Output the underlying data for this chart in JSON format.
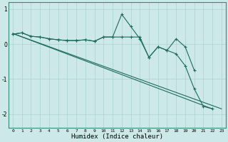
{
  "xlabel": "Humidex (Indice chaleur)",
  "ylabel": "",
  "bg_color": "#cce8e8",
  "line_color": "#1e6b5e",
  "grid_color": "#aad0d0",
  "xlim": [
    -0.5,
    23.5
  ],
  "ylim": [
    -2.4,
    1.2
  ],
  "yticks": [
    -2,
    -1,
    0,
    1
  ],
  "xticks": [
    0,
    1,
    2,
    3,
    4,
    5,
    6,
    7,
    8,
    9,
    10,
    11,
    12,
    13,
    14,
    15,
    16,
    17,
    18,
    19,
    20,
    21,
    22,
    23
  ],
  "series": [
    {
      "x": [
        0,
        23
      ],
      "y": [
        0.3,
        -1.85
      ],
      "has_markers": false
    },
    {
      "x": [
        0,
        22
      ],
      "y": [
        0.3,
        -1.85
      ],
      "has_markers": false
    },
    {
      "x": [
        0,
        1,
        2,
        3,
        4,
        5,
        6,
        7,
        8,
        9,
        10,
        11,
        12,
        13,
        14,
        15,
        16,
        17,
        18,
        19,
        20,
        21,
        22
      ],
      "y": [
        0.28,
        0.32,
        0.22,
        0.2,
        0.15,
        0.12,
        0.1,
        0.1,
        0.12,
        0.08,
        0.2,
        0.2,
        0.85,
        0.5,
        0.15,
        -0.38,
        -0.08,
        -0.18,
        -0.28,
        -0.62,
        -1.28,
        -1.78,
        -1.85
      ],
      "has_markers": true
    },
    {
      "x": [
        0,
        1,
        2,
        3,
        4,
        5,
        6,
        7,
        8,
        9,
        10,
        11,
        12,
        13,
        14,
        15,
        16,
        17,
        18,
        19,
        20,
        21,
        22,
        23
      ],
      "y": [
        0.28,
        0.32,
        0.22,
        0.2,
        0.15,
        0.12,
        0.1,
        0.1,
        0.12,
        0.08,
        0.2,
        0.2,
        0.2,
        0.2,
        0.2,
        -0.38,
        -0.08,
        -0.18,
        0.15,
        -0.08,
        -0.75,
        null,
        null,
        null
      ],
      "has_markers": true
    }
  ]
}
